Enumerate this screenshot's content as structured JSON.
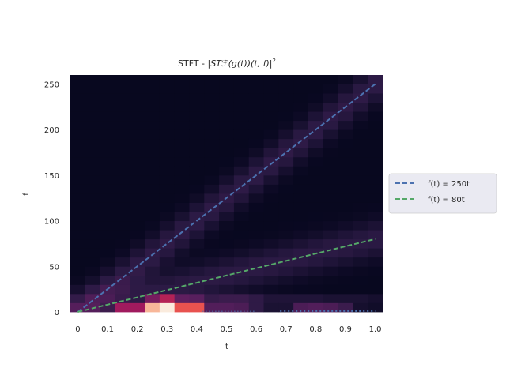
{
  "chart_data": {
    "type": "heatmap",
    "title_prefix": "STFT - |",
    "title_math": "STℱ(g(t))(t, f)|",
    "title_sup": "2",
    "xlabel": "t",
    "ylabel": "f",
    "xlim": [
      -0.025,
      1.025
    ],
    "ylim": [
      0,
      260
    ],
    "x_ticks": [
      {
        "value": 0,
        "label": "0"
      },
      {
        "value": 0.1,
        "label": "0.1"
      },
      {
        "value": 0.2,
        "label": "0.2"
      },
      {
        "value": 0.3,
        "label": "0.3"
      },
      {
        "value": 0.4,
        "label": "0.4"
      },
      {
        "value": 0.5,
        "label": "0.5"
      },
      {
        "value": 0.6,
        "label": "0.6"
      },
      {
        "value": 0.7,
        "label": "0.7"
      },
      {
        "value": 0.8,
        "label": "0.8"
      },
      {
        "value": 0.9,
        "label": "0.9"
      },
      {
        "value": 1.0,
        "label": "1.0"
      }
    ],
    "y_ticks": [
      {
        "value": 0,
        "label": "0"
      },
      {
        "value": 50,
        "label": "50"
      },
      {
        "value": 100,
        "label": "100"
      },
      {
        "value": 150,
        "label": "150"
      },
      {
        "value": 200,
        "label": "200"
      },
      {
        "value": 250,
        "label": "250"
      }
    ],
    "grid": false,
    "legend_position": "outside-right",
    "colormap": [
      "#03051a",
      "#2b1a44",
      "#5c1f5f",
      "#a01a5e",
      "#e13342",
      "#f6946b",
      "#faebdd"
    ],
    "heatmap": {
      "t_bins": 21,
      "t_start": -0.025,
      "t_step": 0.05,
      "f_bins": 26,
      "f_start": 0,
      "f_step": 10
    },
    "series": [
      {
        "name": "f(t) = 250t",
        "x": [
          0,
          1.0
        ],
        "y": [
          0,
          250
        ],
        "color": "#4c72b0",
        "style": "dashed"
      },
      {
        "name": "f(t) = 80t",
        "x": [
          0,
          1.0
        ],
        "y": [
          0,
          80
        ],
        "color": "#55a868",
        "style": "dashed"
      }
    ]
  }
}
